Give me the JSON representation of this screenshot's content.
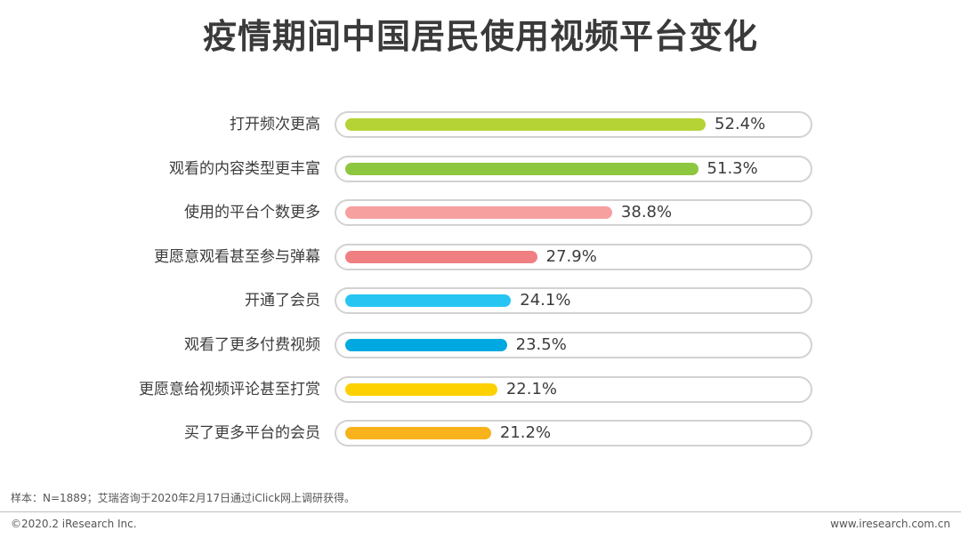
{
  "title": "疫情期间中国居民使用视频平台变化",
  "chart_data": {
    "type": "bar",
    "orientation": "horizontal",
    "unit": "%",
    "xlim": [
      0,
      100
    ],
    "grid": false,
    "categories": [
      "打开频次更高",
      "观看的内容类型更丰富",
      "使用的平台个数更多",
      "更愿意观看甚至参与弹幕",
      "开通了会员",
      "观看了更多付费视频",
      "更愿意给视频评论甚至打赏",
      "买了更多平台的会员"
    ],
    "values": [
      52.4,
      51.3,
      38.8,
      27.9,
      24.1,
      23.5,
      22.1,
      21.2
    ],
    "value_labels": [
      "52.4%",
      "51.3%",
      "38.8%",
      "27.9%",
      "24.1%",
      "23.5%",
      "22.1%",
      "21.2%"
    ],
    "colors": [
      "#b5d335",
      "#8dc63f",
      "#f6a0a0",
      "#f07f82",
      "#27c6f2",
      "#00a8e1",
      "#fdd000",
      "#f7b21c"
    ]
  },
  "note": "样本：N=1889；艾瑞咨询于2020年2月17日通过iClick网上调研获得。",
  "footer": {
    "copyright": "©2020.2 iResearch Inc.",
    "website": "www.iresearch.com.cn"
  }
}
